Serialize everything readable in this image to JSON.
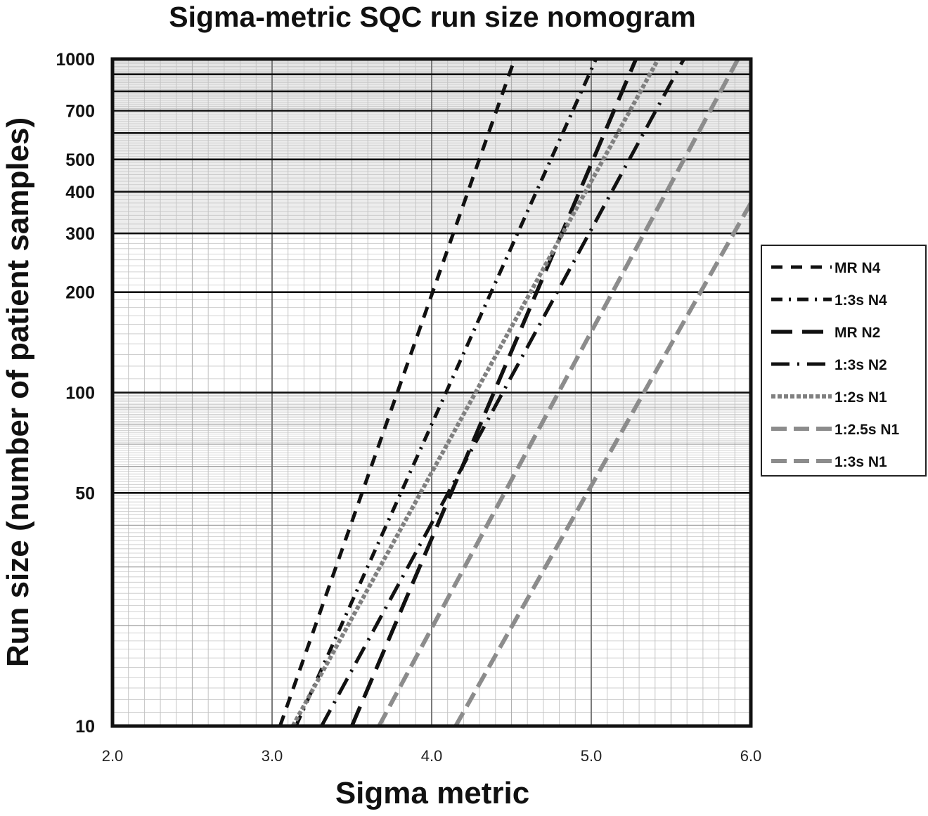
{
  "chart_data": {
    "type": "line",
    "title": "Sigma-metric SQC run size nomogram",
    "xlabel": "Sigma metric",
    "ylabel": "Run size (number of patient samples)",
    "x_scale": "linear",
    "y_scale": "log",
    "xlim": [
      2.0,
      6.0
    ],
    "ylim": [
      10,
      1000
    ],
    "x_ticks": [
      2.0,
      3.0,
      4.0,
      5.0,
      6.0
    ],
    "x_tick_labels": [
      "2.0",
      "3.0",
      "4.0",
      "5.0",
      "6.0"
    ],
    "y_ticks": [
      10,
      50,
      100,
      200,
      300,
      400,
      500,
      700,
      1000
    ],
    "y_tick_labels": [
      "10",
      "50",
      "100",
      "200",
      "300",
      "400",
      "500",
      "700",
      "1000"
    ],
    "y_major_lines": [
      10,
      50,
      100,
      200,
      300,
      400,
      500,
      600,
      700,
      800,
      900,
      1000
    ],
    "grid": true,
    "legend_position": "right",
    "series": [
      {
        "name": "MR N4",
        "dash": "mr",
        "color": "#111111",
        "x": [
          3.05,
          4.52
        ],
        "y": [
          10,
          1000
        ]
      },
      {
        "name": "1:3s N4",
        "dash": "dot3",
        "color": "#111111",
        "x": [
          3.15,
          5.03
        ],
        "y": [
          10,
          1000
        ]
      },
      {
        "name": "MR N2",
        "dash": "long",
        "color": "#111111",
        "x": [
          3.5,
          5.28
        ],
        "y": [
          10,
          1000
        ]
      },
      {
        "name": "1:3s N2",
        "dash": "dot2",
        "color": "#111111",
        "x": [
          3.31,
          5.58
        ],
        "y": [
          10,
          1000
        ]
      },
      {
        "name": "1:2s N1",
        "dash": "dbl",
        "color": "#808080",
        "x": [
          3.13,
          5.42
        ],
        "y": [
          10,
          1000
        ]
      },
      {
        "name": "1:2.5s N1",
        "dash": "gray",
        "color": "#8c8c8c",
        "x": [
          3.67,
          5.92
        ],
        "y": [
          10,
          1000
        ]
      },
      {
        "name": "1:3s N1",
        "dash": "gray",
        "color": "#8c8c8c",
        "x": [
          4.15,
          6.0
        ],
        "y": [
          10,
          370
        ]
      }
    ]
  }
}
